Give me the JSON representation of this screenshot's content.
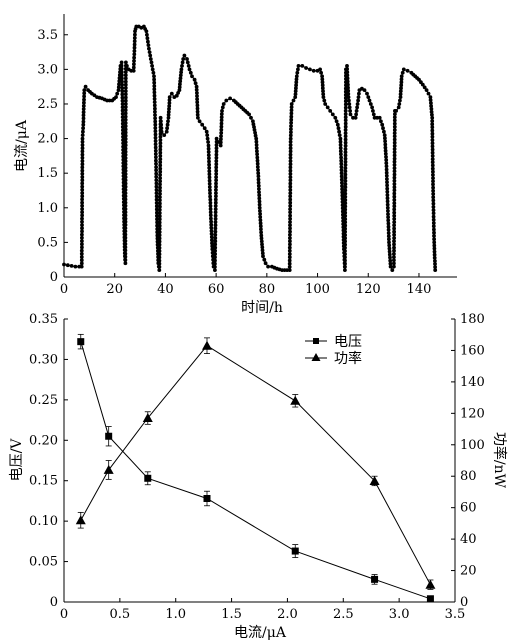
{
  "chart_data": [
    {
      "type": "line",
      "xlabel": "时间/h",
      "ylabel": "电流/μA",
      "xlim": [
        0,
        155
      ],
      "ylim": [
        0,
        3.8
      ],
      "xticks": [
        "0",
        "20",
        "40",
        "60",
        "80",
        "100",
        "120",
        "140"
      ],
      "yticks": [
        "0",
        "0.5",
        "1.0",
        "1.5",
        "2.0",
        "2.5",
        "3.0",
        "3.5"
      ],
      "grid": false,
      "series": [
        {
          "points": [
            [
              0,
              0.18
            ],
            [
              1.5,
              0.17
            ],
            [
              3,
              0.16
            ],
            [
              4.5,
              0.15
            ],
            [
              6,
              0.15
            ],
            [
              7,
              0.15
            ],
            [
              7.3,
              2.0
            ],
            [
              7.6,
              2.2
            ],
            [
              8,
              2.7
            ],
            [
              8.5,
              2.75
            ],
            [
              9.5,
              2.7
            ],
            [
              11,
              2.65
            ],
            [
              13,
              2.6
            ],
            [
              15,
              2.58
            ],
            [
              17,
              2.55
            ],
            [
              19,
              2.55
            ],
            [
              20.5,
              2.6
            ],
            [
              21.5,
              2.7
            ],
            [
              22.3,
              3.05
            ],
            [
              22.7,
              3.1
            ],
            [
              23.1,
              2.5
            ],
            [
              23.4,
              1.6
            ],
            [
              23.7,
              0.8
            ],
            [
              24,
              0.3
            ],
            [
              24.2,
              0.2
            ],
            [
              24.4,
              3.1
            ],
            [
              24.8,
              3.05
            ],
            [
              25.5,
              3.0
            ],
            [
              26.5,
              2.98
            ],
            [
              27.5,
              2.98
            ],
            [
              28,
              3.55
            ],
            [
              28.5,
              3.62
            ],
            [
              29.5,
              3.62
            ],
            [
              30.5,
              3.6
            ],
            [
              31.5,
              3.62
            ],
            [
              32.5,
              3.55
            ],
            [
              33.5,
              3.3
            ],
            [
              34.5,
              3.1
            ],
            [
              35.5,
              2.9
            ],
            [
              36,
              2.2
            ],
            [
              36.4,
              1.4
            ],
            [
              36.8,
              0.6
            ],
            [
              37.2,
              0.2
            ],
            [
              37.6,
              0.1
            ],
            [
              38.1,
              2.3
            ],
            [
              38.5,
              2.1
            ],
            [
              39.5,
              2.05
            ],
            [
              40.5,
              2.1
            ],
            [
              41.2,
              2.3
            ],
            [
              41.7,
              2.6
            ],
            [
              42.5,
              2.65
            ],
            [
              43.5,
              2.6
            ],
            [
              44.5,
              2.62
            ],
            [
              45.5,
              2.7
            ],
            [
              46.3,
              3.0
            ],
            [
              47,
              3.15
            ],
            [
              47.5,
              3.2
            ],
            [
              48.5,
              3.15
            ],
            [
              49.5,
              3.0
            ],
            [
              50.5,
              2.9
            ],
            [
              51.5,
              2.85
            ],
            [
              52.3,
              2.75
            ],
            [
              52.8,
              2.3
            ],
            [
              53.5,
              2.25
            ],
            [
              54.5,
              2.2
            ],
            [
              55.5,
              2.15
            ],
            [
              56.3,
              2.1
            ],
            [
              57,
              1.9
            ],
            [
              57.5,
              1.3
            ],
            [
              58,
              0.8
            ],
            [
              58.5,
              0.4
            ],
            [
              59,
              0.15
            ],
            [
              59.5,
              0.1
            ],
            [
              60.2,
              2.0
            ],
            [
              61,
              1.95
            ],
            [
              61.8,
              1.9
            ],
            [
              62.3,
              2.4
            ],
            [
              63,
              2.5
            ],
            [
              64,
              2.55
            ],
            [
              65.5,
              2.58
            ],
            [
              67,
              2.55
            ],
            [
              68.5,
              2.5
            ],
            [
              70,
              2.45
            ],
            [
              71.5,
              2.4
            ],
            [
              73,
              2.35
            ],
            [
              74.5,
              2.25
            ],
            [
              75.8,
              2.0
            ],
            [
              76.6,
              1.5
            ],
            [
              77.2,
              1.0
            ],
            [
              77.8,
              0.6
            ],
            [
              78.5,
              0.3
            ],
            [
              79.5,
              0.2
            ],
            [
              80.5,
              0.15
            ],
            [
              82,
              0.15
            ],
            [
              84,
              0.12
            ],
            [
              86,
              0.1
            ],
            [
              88,
              0.1
            ],
            [
              89,
              0.1
            ],
            [
              89.4,
              2.0
            ],
            [
              89.8,
              2.5
            ],
            [
              90.5,
              2.55
            ],
            [
              91.2,
              2.6
            ],
            [
              91.8,
              2.9
            ],
            [
              92.5,
              3.05
            ],
            [
              94,
              3.05
            ],
            [
              95.5,
              3.02
            ],
            [
              97,
              3.0
            ],
            [
              98.5,
              2.98
            ],
            [
              100,
              2.98
            ],
            [
              101,
              3.0
            ],
            [
              101.8,
              2.9
            ],
            [
              102.3,
              2.6
            ],
            [
              103,
              2.5
            ],
            [
              104,
              2.45
            ],
            [
              105,
              2.4
            ],
            [
              106,
              2.35
            ],
            [
              107,
              2.3
            ],
            [
              108,
              2.2
            ],
            [
              109,
              2.0
            ],
            [
              109.5,
              1.5
            ],
            [
              110,
              0.9
            ],
            [
              110.4,
              0.4
            ],
            [
              110.8,
              0.1
            ],
            [
              111.2,
              3.0
            ],
            [
              111.6,
              3.05
            ],
            [
              112.2,
              2.6
            ],
            [
              113,
              2.35
            ],
            [
              114,
              2.3
            ],
            [
              115,
              2.3
            ],
            [
              115.8,
              2.5
            ],
            [
              116.5,
              2.7
            ],
            [
              117.5,
              2.72
            ],
            [
              118.5,
              2.7
            ],
            [
              119.5,
              2.65
            ],
            [
              120.5,
              2.55
            ],
            [
              121.5,
              2.45
            ],
            [
              122.5,
              2.3
            ],
            [
              123.5,
              2.3
            ],
            [
              124.5,
              2.3
            ],
            [
              125.5,
              2.2
            ],
            [
              126.5,
              2.05
            ],
            [
              127.2,
              1.6
            ],
            [
              127.7,
              1.0
            ],
            [
              128.2,
              0.5
            ],
            [
              128.8,
              0.15
            ],
            [
              129.5,
              0.1
            ],
            [
              130.1,
              0.15
            ],
            [
              130.5,
              2.4
            ],
            [
              131,
              2.4
            ],
            [
              132,
              2.45
            ],
            [
              132.7,
              2.6
            ],
            [
              133.2,
              2.9
            ],
            [
              134,
              3.0
            ],
            [
              135.5,
              2.98
            ],
            [
              137,
              2.95
            ],
            [
              138.5,
              2.9
            ],
            [
              140,
              2.85
            ],
            [
              141.5,
              2.78
            ],
            [
              143,
              2.7
            ],
            [
              144.5,
              2.6
            ],
            [
              145.2,
              2.3
            ],
            [
              145.6,
              1.2
            ],
            [
              146,
              0.5
            ],
            [
              146.4,
              0.1
            ]
          ]
        }
      ]
    },
    {
      "type": "line",
      "xlabel": "电流/μA",
      "ylabel": "电压/V",
      "ylabel_right": "功率/nW",
      "xlim": [
        0,
        3.5
      ],
      "ylim": [
        0,
        0.35
      ],
      "ylim_right": [
        0,
        180
      ],
      "xticks": [
        "0",
        "0.5",
        "1.0",
        "1.5",
        "2.0",
        "2.5",
        "3.0",
        "3.5"
      ],
      "yticks": [
        "0",
        "0.05",
        "0.10",
        "0.15",
        "0.20",
        "0.25",
        "0.30",
        "0.35"
      ],
      "yticks_right": [
        "0",
        "20",
        "40",
        "60",
        "80",
        "100",
        "120",
        "140",
        "160",
        "180"
      ],
      "grid": false,
      "legend_position": "top-right",
      "series": [
        {
          "name": "电压",
          "marker": "square",
          "axis": "left",
          "x": [
            0.15,
            0.4,
            0.75,
            1.28,
            2.07,
            2.78,
            3.28
          ],
          "y": [
            0.322,
            0.205,
            0.153,
            0.128,
            0.063,
            0.028,
            0.004
          ],
          "error": [
            0.009,
            0.012,
            0.008,
            0.009,
            0.008,
            0.006,
            0.003
          ]
        },
        {
          "name": "功率",
          "marker": "triangle",
          "axis": "right",
          "x": [
            0.15,
            0.4,
            0.75,
            1.28,
            2.07,
            2.78,
            3.28
          ],
          "y": [
            52,
            84,
            117,
            163,
            128,
            77,
            11
          ],
          "error": [
            5,
            6,
            4,
            5,
            4,
            3,
            3
          ]
        }
      ]
    }
  ]
}
